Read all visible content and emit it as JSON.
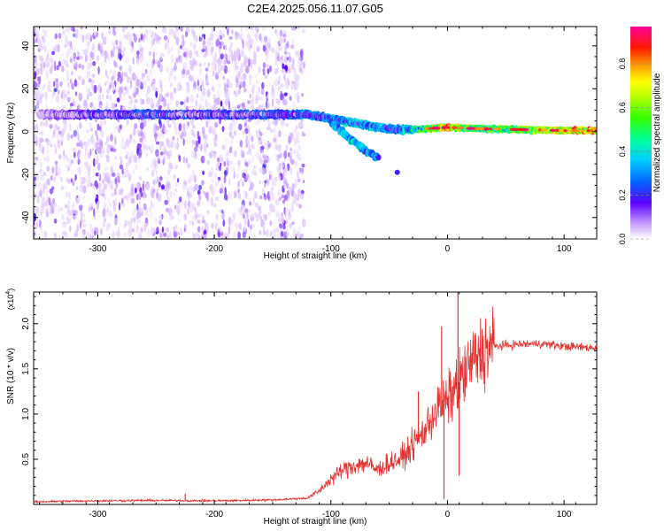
{
  "page": {
    "title": "C2E4.2025.056.11.07.G05"
  },
  "chart_data": [
    {
      "type": "heatmap",
      "title": "C2E4.2025.056.11.07.G05",
      "xlabel": "Height of straight line (km)",
      "ylabel": "Frequency (Hz)",
      "xlim": [
        -355,
        128
      ],
      "ylim": [
        -50,
        49
      ],
      "xticks": [
        -300,
        -200,
        -100,
        0,
        100
      ],
      "yticks": [
        -40,
        -20,
        0,
        20,
        40
      ],
      "colorbar": {
        "label": "Normalized spectral amplitude",
        "range": [
          0,
          0.97
        ],
        "ticks": [
          0.0,
          0.2,
          0.4,
          0.6,
          0.8
        ],
        "tick_labels": [
          "0.0",
          "0.2",
          "0.4",
          "0.6",
          "0.8"
        ]
      },
      "noise_region_x": [
        -355,
        -123
      ],
      "ridge": {
        "x": [
          -350,
          -300,
          -250,
          -200,
          -150,
          -120,
          -100,
          -80,
          -60,
          -45,
          -30,
          -15,
          0,
          20,
          60,
          100,
          128
        ],
        "freq_hz": [
          8,
          8,
          8,
          8,
          8,
          8,
          6,
          4,
          2,
          1,
          1,
          1.5,
          2,
          1.5,
          1,
          0.5,
          0.5
        ],
        "amplitude": [
          0.1,
          0.22,
          0.25,
          0.22,
          0.25,
          0.3,
          0.35,
          0.4,
          0.38,
          0.35,
          0.45,
          0.6,
          0.8,
          0.55,
          0.6,
          0.75,
          0.85
        ]
      },
      "branch": {
        "x": [
          -100,
          -90,
          -80,
          -70,
          -60
        ],
        "freq_hz": [
          4,
          0,
          -5,
          -9,
          -12
        ],
        "amplitude": [
          0.3,
          0.35,
          0.4,
          0.35,
          0.3
        ]
      }
    },
    {
      "type": "line",
      "xlabel": "Height of straight line (km)",
      "ylabel": "SNR (10 * v/v)",
      "y_multiplier_label": "(x10",
      "y_multiplier_exp": "4",
      "y_multiplier_close": ")",
      "xlim": [
        -355,
        128
      ],
      "ylim": [
        0,
        23500
      ],
      "xticks": [
        -300,
        -200,
        -100,
        0,
        100
      ],
      "yticks": [
        5000,
        10000,
        15000,
        20000
      ],
      "ytick_labels": [
        "0.5",
        "1.0",
        "1.5",
        "2.0"
      ],
      "series": [
        {
          "color": "#e8302e",
          "x": [
            -355,
            -300,
            -250,
            -200,
            -150,
            -120,
            -110,
            -100,
            -90,
            -80,
            -70,
            -60,
            -50,
            -40,
            -30,
            -20,
            -10,
            0,
            10,
            20,
            30,
            40,
            60,
            80,
            100,
            128
          ],
          "y": [
            300,
            400,
            450,
            400,
            500,
            700,
            1500,
            2800,
            3800,
            4300,
            4600,
            3800,
            4600,
            5000,
            6500,
            8000,
            10500,
            11500,
            13500,
            15500,
            17000,
            17500,
            17700,
            17800,
            17500,
            17300
          ]
        }
      ],
      "spikes": [
        {
          "x": -225,
          "y": 1200
        },
        {
          "x": -25,
          "y": 12500
        },
        {
          "x": -5,
          "y": 19700
        },
        {
          "x": -3,
          "y": 600
        },
        {
          "x": 9,
          "y": 23500
        },
        {
          "x": 10,
          "y": 3200
        }
      ]
    }
  ]
}
